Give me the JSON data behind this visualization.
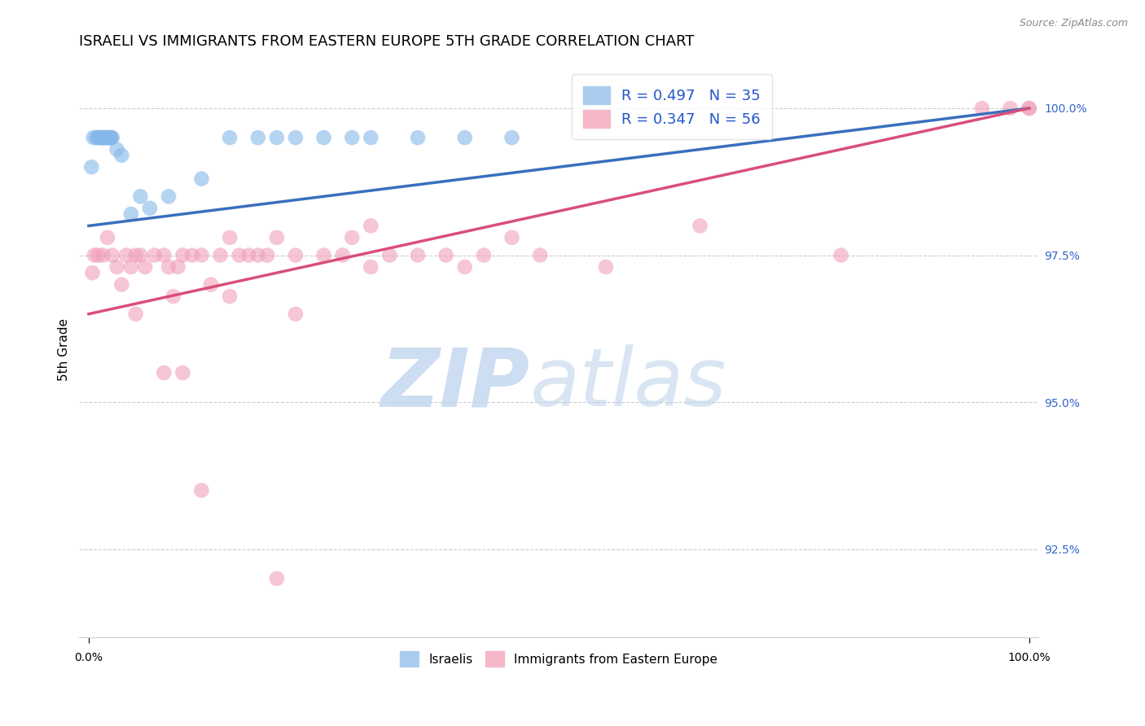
{
  "title": "ISRAELI VS IMMIGRANTS FROM EASTERN EUROPE 5TH GRADE CORRELATION CHART",
  "source": "Source: ZipAtlas.com",
  "ylabel": "5th Grade",
  "y_ticks": [
    92.5,
    95.0,
    97.5,
    100.0
  ],
  "y_min": 91.0,
  "y_max": 100.8,
  "x_min": -1.0,
  "x_max": 101.0,
  "blue_line_color": "#3a6fbd",
  "pink_line_color": "#d94f7a",
  "blue_dot_color": "#85b8e8",
  "pink_dot_color": "#f0a0b8",
  "grid_color": "#cccccc",
  "tick_color_right": "#3366cc",
  "legend_text_color": "#2255cc",
  "watermark_zip_color": "#c5d8f0",
  "watermark_atlas_color": "#c0d5ec",
  "israelis_x": [
    0.3,
    0.5,
    0.8,
    1.0,
    1.1,
    1.2,
    1.3,
    1.4,
    1.5,
    1.6,
    1.7,
    1.8,
    2.0,
    2.1,
    2.2,
    2.3,
    2.4,
    2.5,
    3.0,
    3.5,
    4.5,
    5.5,
    6.5,
    8.5,
    12.0,
    15.0,
    18.0,
    20.0,
    22.0,
    25.0,
    28.0,
    30.0,
    35.0,
    40.0,
    45.0
  ],
  "israelis_y": [
    99.0,
    99.5,
    99.5,
    99.5,
    99.5,
    99.5,
    99.5,
    99.5,
    99.5,
    99.5,
    99.5,
    99.5,
    99.5,
    99.5,
    99.5,
    99.5,
    99.5,
    99.5,
    99.3,
    99.2,
    98.2,
    98.5,
    98.3,
    98.5,
    98.8,
    99.5,
    99.5,
    99.5,
    99.5,
    99.5,
    99.5,
    99.5,
    99.5,
    99.5,
    99.5
  ],
  "immigrants_x": [
    0.4,
    0.6,
    1.0,
    1.5,
    2.0,
    2.5,
    3.0,
    3.5,
    4.0,
    4.5,
    5.0,
    5.5,
    6.0,
    7.0,
    8.0,
    8.5,
    9.0,
    9.5,
    10.0,
    11.0,
    12.0,
    13.0,
    14.0,
    15.0,
    16.0,
    17.0,
    18.0,
    19.0,
    20.0,
    22.0,
    25.0,
    27.0,
    28.0,
    30.0,
    32.0,
    35.0,
    38.0,
    40.0,
    42.0,
    45.0,
    48.0,
    55.0,
    65.0,
    80.0,
    95.0,
    98.0,
    100.0,
    100.0,
    22.0,
    30.0,
    10.0,
    15.0,
    5.0,
    8.0,
    12.0,
    20.0
  ],
  "immigrants_y": [
    97.2,
    97.5,
    97.5,
    97.5,
    97.8,
    97.5,
    97.3,
    97.0,
    97.5,
    97.3,
    97.5,
    97.5,
    97.3,
    97.5,
    97.5,
    97.3,
    96.8,
    97.3,
    97.5,
    97.5,
    97.5,
    97.0,
    97.5,
    97.8,
    97.5,
    97.5,
    97.5,
    97.5,
    97.8,
    97.5,
    97.5,
    97.5,
    97.8,
    97.3,
    97.5,
    97.5,
    97.5,
    97.3,
    97.5,
    97.8,
    97.5,
    97.3,
    98.0,
    97.5,
    100.0,
    100.0,
    100.0,
    100.0,
    96.5,
    98.0,
    95.5,
    96.8,
    96.5,
    95.5,
    93.5,
    92.0
  ],
  "isr_line_x0": 0,
  "isr_line_x1": 100,
  "isr_line_y0": 98.0,
  "isr_line_y1": 100.0,
  "imm_line_x0": 0,
  "imm_line_x1": 100,
  "imm_line_y0": 96.5,
  "imm_line_y1": 100.0
}
